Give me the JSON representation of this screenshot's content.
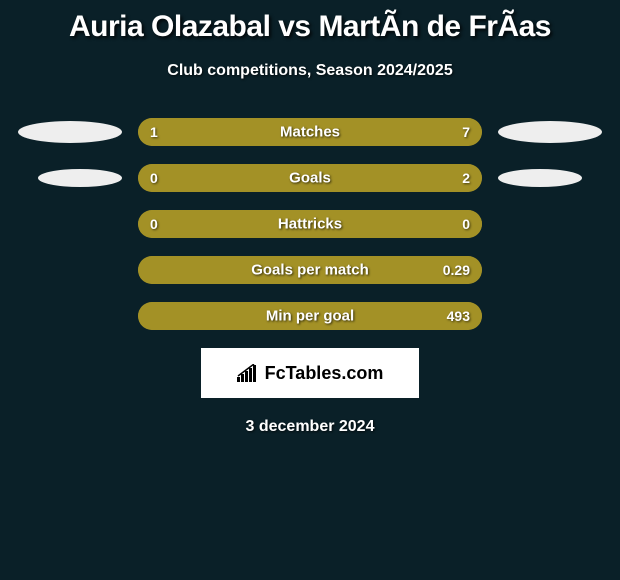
{
  "title": "Auria Olazabal vs MartÃ­n de FrÃ­as",
  "subtitle": "Club competitions, Season 2024/2025",
  "date": "3 december 2024",
  "logo_text": "FcTables.com",
  "colors": {
    "background": "#0a2028",
    "bar_left": "#a39126",
    "bar_right": "#a39126",
    "ellipse": "#eeeeee",
    "logo_bg": "#ffffff",
    "text": "#ffffff"
  },
  "stats": [
    {
      "label": "Matches",
      "left_val": "1",
      "right_val": "7",
      "left_pct": 18,
      "right_pct": 82,
      "show_ellipse": true
    },
    {
      "label": "Goals",
      "left_val": "0",
      "right_val": "2",
      "left_pct": 4,
      "right_pct": 96,
      "show_ellipse": true
    },
    {
      "label": "Hattricks",
      "left_val": "0",
      "right_val": "0",
      "left_pct": 100,
      "right_pct": 0,
      "show_ellipse": false
    },
    {
      "label": "Goals per match",
      "left_val": "",
      "right_val": "0.29",
      "left_pct": 4,
      "right_pct": 96,
      "show_ellipse": false
    },
    {
      "label": "Min per goal",
      "left_val": "",
      "right_val": "493",
      "left_pct": 4,
      "right_pct": 96,
      "show_ellipse": false
    }
  ]
}
